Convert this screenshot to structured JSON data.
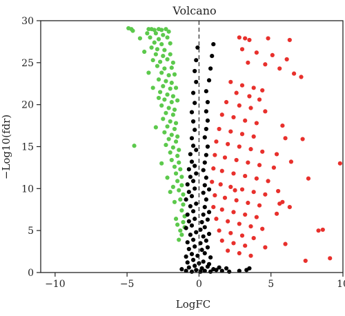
{
  "chart_data": {
    "type": "scatter",
    "title": "Volcano",
    "xlabel": "LogFC",
    "ylabel": "−Log10(fdr)",
    "xlim": [
      -11,
      10
    ],
    "ylim": [
      0,
      30
    ],
    "xticks": [
      -10,
      -5,
      0,
      5,
      10
    ],
    "yticks": [
      0,
      5,
      10,
      15,
      20,
      25,
      30
    ],
    "xtick_labels": [
      "−10",
      "−5",
      "0",
      "5",
      "10"
    ],
    "ytick_labels": [
      "0",
      "5",
      "10",
      "15",
      "20",
      "25",
      "30"
    ],
    "reference_line": {
      "x": 0,
      "style": "dashed"
    },
    "grid": false,
    "legend": "none",
    "colors": {
      "up": "#e8302c",
      "down": "#5cc94c",
      "not_significant": "#000000"
    },
    "series": [
      {
        "group": "down",
        "color": "#5cc94c",
        "points": [
          [
            -4.9,
            29.1
          ],
          [
            -4.7,
            29.0
          ],
          [
            -4.6,
            28.8
          ],
          [
            -3.5,
            29.0
          ],
          [
            -3.3,
            29.0
          ],
          [
            -3.1,
            28.9
          ],
          [
            -2.8,
            29.0
          ],
          [
            -2.6,
            28.9
          ],
          [
            -2.3,
            29.0
          ],
          [
            -2.1,
            28.7
          ],
          [
            -3.6,
            28.5
          ],
          [
            -3.0,
            28.5
          ],
          [
            -2.5,
            28.3
          ],
          [
            -3.4,
            28.0
          ],
          [
            -2.8,
            27.8
          ],
          [
            -2.2,
            28.0
          ],
          [
            -3.1,
            27.4
          ],
          [
            -2.6,
            27.2
          ],
          [
            -2.0,
            27.3
          ],
          [
            -3.3,
            26.8
          ],
          [
            -2.9,
            26.6
          ],
          [
            -2.4,
            26.5
          ],
          [
            -3.0,
            26.0
          ],
          [
            -2.5,
            25.8
          ],
          [
            -2.0,
            26.0
          ],
          [
            -3.2,
            25.3
          ],
          [
            -2.7,
            25.1
          ],
          [
            -2.2,
            25.4
          ],
          [
            -1.8,
            25.0
          ],
          [
            -2.9,
            24.6
          ],
          [
            -2.4,
            24.3
          ],
          [
            -1.9,
            24.4
          ],
          [
            -2.6,
            23.8
          ],
          [
            -2.1,
            23.5
          ],
          [
            -1.7,
            23.6
          ],
          [
            -2.8,
            23.0
          ],
          [
            -2.3,
            22.8
          ],
          [
            -1.9,
            22.6
          ],
          [
            -2.5,
            22.2
          ],
          [
            -2.0,
            21.9
          ],
          [
            -1.6,
            22.0
          ],
          [
            -2.7,
            21.5
          ],
          [
            -2.2,
            21.2
          ],
          [
            -1.8,
            21.0
          ],
          [
            -2.4,
            20.6
          ],
          [
            -1.9,
            20.3
          ],
          [
            -1.5,
            20.5
          ],
          [
            -2.6,
            19.9
          ],
          [
            -2.1,
            19.6
          ],
          [
            -1.7,
            19.4
          ],
          [
            -2.3,
            19.0
          ],
          [
            -1.8,
            18.8
          ],
          [
            -2.5,
            18.3
          ],
          [
            -2.0,
            18.0
          ],
          [
            -1.6,
            17.8
          ],
          [
            -2.2,
            17.4
          ],
          [
            -1.7,
            17.1
          ],
          [
            -2.4,
            16.7
          ],
          [
            -1.9,
            16.4
          ],
          [
            -1.5,
            16.2
          ],
          [
            -2.1,
            15.9
          ],
          [
            -1.6,
            15.6
          ],
          [
            -2.3,
            15.2
          ],
          [
            -1.8,
            14.9
          ],
          [
            -1.4,
            14.6
          ],
          [
            -2.0,
            14.3
          ],
          [
            -1.5,
            13.9
          ],
          [
            -1.9,
            13.4
          ],
          [
            -1.4,
            13.1
          ],
          [
            -1.7,
            12.6
          ],
          [
            -1.3,
            12.3
          ],
          [
            -1.6,
            11.8
          ],
          [
            -1.2,
            11.4
          ],
          [
            -1.5,
            10.9
          ],
          [
            -1.2,
            10.4
          ],
          [
            -1.4,
            9.8
          ],
          [
            -1.1,
            9.3
          ],
          [
            -1.3,
            8.7
          ],
          [
            -1.1,
            8.1
          ],
          [
            -1.2,
            7.4
          ],
          [
            -1.0,
            6.7
          ],
          [
            -1.1,
            6.0
          ],
          [
            -1.0,
            5.4
          ],
          [
            -1.3,
            5.0
          ],
          [
            -1.5,
            5.7
          ],
          [
            -1.6,
            6.4
          ],
          [
            -1.2,
            4.5
          ],
          [
            -1.4,
            3.9
          ],
          [
            -4.5,
            15.1
          ],
          [
            -1.8,
            10.2
          ],
          [
            -2.2,
            11.3
          ],
          [
            -2.6,
            13.0
          ],
          [
            -3.0,
            17.3
          ],
          [
            -3.5,
            23.8
          ],
          [
            -3.8,
            26.3
          ],
          [
            -4.1,
            27.9
          ],
          [
            -1.7,
            8.4
          ],
          [
            -2.0,
            9.6
          ],
          [
            -2.8,
            20.8
          ],
          [
            -3.2,
            22.0
          ]
        ]
      },
      {
        "group": "not_significant",
        "color": "#000000",
        "points": [
          [
            -0.9,
            0.2
          ],
          [
            -0.5,
            0.1
          ],
          [
            -0.2,
            0.3
          ],
          [
            0.1,
            0.1
          ],
          [
            0.4,
            0.2
          ],
          [
            0.8,
            0.1
          ],
          [
            1.2,
            0.3
          ],
          [
            1.6,
            0.2
          ],
          [
            2.1,
            0.1
          ],
          [
            -0.7,
            0.6
          ],
          [
            -0.3,
            0.8
          ],
          [
            0.2,
            0.5
          ],
          [
            0.6,
            0.7
          ],
          [
            1.0,
            0.4
          ],
          [
            1.4,
            0.6
          ],
          [
            -0.8,
            1.2
          ],
          [
            -0.4,
            1.5
          ],
          [
            0.0,
            1.1
          ],
          [
            0.3,
            1.3
          ],
          [
            0.7,
            1.0
          ],
          [
            -0.9,
            1.9
          ],
          [
            -0.5,
            2.2
          ],
          [
            -0.1,
            2.0
          ],
          [
            0.4,
            2.3
          ],
          [
            0.8,
            1.8
          ],
          [
            -0.7,
            2.8
          ],
          [
            -0.3,
            3.1
          ],
          [
            0.2,
            2.7
          ],
          [
            0.6,
            3.0
          ],
          [
            -0.8,
            3.6
          ],
          [
            -0.4,
            3.9
          ],
          [
            0.1,
            3.5
          ],
          [
            0.5,
            3.8
          ],
          [
            -0.6,
            4.5
          ],
          [
            -0.2,
            4.8
          ],
          [
            0.3,
            4.3
          ],
          [
            0.7,
            4.6
          ],
          [
            -0.9,
            5.3
          ],
          [
            -0.5,
            5.6
          ],
          [
            0.1,
            5.1
          ],
          [
            0.4,
            5.4
          ],
          [
            -0.7,
            6.1
          ],
          [
            -0.3,
            6.4
          ],
          [
            0.2,
            6.0
          ],
          [
            0.6,
            6.3
          ],
          [
            -0.8,
            6.9
          ],
          [
            -0.4,
            7.3
          ],
          [
            0.3,
            6.9
          ],
          [
            0.7,
            7.2
          ],
          [
            -0.6,
            7.9
          ],
          [
            -0.2,
            8.2
          ],
          [
            0.4,
            7.8
          ],
          [
            -0.9,
            8.7
          ],
          [
            -0.5,
            9.1
          ],
          [
            0.5,
            8.7
          ],
          [
            -0.7,
            9.6
          ],
          [
            -0.3,
            10.0
          ],
          [
            0.3,
            9.5
          ],
          [
            0.7,
            9.9
          ],
          [
            -0.8,
            10.5
          ],
          [
            -0.4,
            10.9
          ],
          [
            0.4,
            10.4
          ],
          [
            -0.6,
            11.4
          ],
          [
            -0.2,
            11.8
          ],
          [
            0.5,
            11.3
          ],
          [
            -0.7,
            12.3
          ],
          [
            -0.3,
            12.7
          ],
          [
            0.3,
            12.2
          ],
          [
            -0.5,
            13.2
          ],
          [
            0.4,
            13.1
          ],
          [
            -0.6,
            14.1
          ],
          [
            -0.2,
            14.6
          ],
          [
            0.5,
            14.0
          ],
          [
            -0.4,
            15.1
          ],
          [
            0.6,
            15.0
          ],
          [
            -0.5,
            16.0
          ],
          [
            0.4,
            16.1
          ],
          [
            -0.3,
            17.0
          ],
          [
            0.5,
            17.1
          ],
          [
            -0.4,
            18.0
          ],
          [
            0.6,
            18.1
          ],
          [
            -0.5,
            19.1
          ],
          [
            0.5,
            19.2
          ],
          [
            -0.3,
            20.2
          ],
          [
            0.6,
            20.3
          ],
          [
            -0.4,
            21.4
          ],
          [
            0.5,
            21.6
          ],
          [
            -0.2,
            22.7
          ],
          [
            0.7,
            22.9
          ],
          [
            -0.3,
            24.0
          ],
          [
            0.8,
            24.3
          ],
          [
            -0.2,
            25.3
          ],
          [
            0.9,
            25.8
          ],
          [
            1.0,
            27.2
          ],
          [
            -0.1,
            26.8
          ],
          [
            3.3,
            0.3
          ],
          [
            3.5,
            0.5
          ],
          [
            2.8,
            0.2
          ],
          [
            -1.2,
            0.4
          ],
          [
            1.9,
            0.5
          ]
        ]
      },
      {
        "group": "up",
        "color": "#e8302c",
        "points": [
          [
            2.8,
            28.0
          ],
          [
            3.2,
            27.9
          ],
          [
            3.5,
            27.7
          ],
          [
            4.8,
            27.9
          ],
          [
            6.3,
            27.7
          ],
          [
            3.0,
            26.6
          ],
          [
            4.0,
            26.2
          ],
          [
            5.1,
            25.9
          ],
          [
            6.1,
            25.4
          ],
          [
            3.4,
            25.0
          ],
          [
            4.6,
            24.8
          ],
          [
            5.6,
            24.3
          ],
          [
            6.6,
            23.7
          ],
          [
            7.1,
            23.3
          ],
          [
            2.2,
            22.7
          ],
          [
            3.0,
            22.3
          ],
          [
            3.8,
            22.0
          ],
          [
            4.4,
            21.7
          ],
          [
            2.6,
            21.4
          ],
          [
            3.5,
            21.0
          ],
          [
            4.2,
            20.6
          ],
          [
            1.9,
            20.3
          ],
          [
            2.8,
            19.9
          ],
          [
            3.6,
            19.6
          ],
          [
            4.6,
            19.2
          ],
          [
            1.6,
            18.8
          ],
          [
            2.4,
            18.5
          ],
          [
            3.2,
            18.1
          ],
          [
            4.0,
            17.8
          ],
          [
            5.8,
            17.5
          ],
          [
            1.4,
            17.1
          ],
          [
            2.2,
            16.8
          ],
          [
            3.0,
            16.5
          ],
          [
            3.8,
            16.2
          ],
          [
            6.0,
            16.0
          ],
          [
            7.2,
            15.9
          ],
          [
            1.2,
            15.6
          ],
          [
            2.0,
            15.3
          ],
          [
            2.8,
            15.0
          ],
          [
            3.6,
            14.7
          ],
          [
            4.4,
            14.4
          ],
          [
            5.4,
            14.1
          ],
          [
            1.1,
            14.0
          ],
          [
            1.8,
            13.7
          ],
          [
            2.6,
            13.4
          ],
          [
            3.4,
            13.1
          ],
          [
            4.2,
            12.8
          ],
          [
            5.2,
            12.5
          ],
          [
            6.4,
            13.2
          ],
          [
            9.8,
            13.0
          ],
          [
            1.0,
            12.4
          ],
          [
            1.6,
            12.1
          ],
          [
            2.4,
            11.8
          ],
          [
            3.2,
            11.5
          ],
          [
            4.0,
            11.2
          ],
          [
            4.8,
            10.9
          ],
          [
            0.9,
            10.8
          ],
          [
            1.5,
            10.5
          ],
          [
            2.2,
            10.2
          ],
          [
            3.0,
            9.9
          ],
          [
            3.8,
            9.6
          ],
          [
            4.6,
            9.3
          ],
          [
            5.5,
            9.7
          ],
          [
            7.6,
            11.2
          ],
          [
            1.1,
            9.2
          ],
          [
            1.8,
            8.9
          ],
          [
            2.6,
            8.6
          ],
          [
            3.4,
            8.3
          ],
          [
            4.2,
            8.0
          ],
          [
            5.8,
            8.4
          ],
          [
            1.0,
            7.8
          ],
          [
            1.6,
            7.5
          ],
          [
            2.4,
            7.2
          ],
          [
            3.2,
            6.9
          ],
          [
            4.0,
            6.6
          ],
          [
            5.4,
            7.0
          ],
          [
            1.2,
            6.4
          ],
          [
            2.0,
            6.1
          ],
          [
            2.8,
            5.8
          ],
          [
            3.6,
            5.5
          ],
          [
            4.4,
            5.2
          ],
          [
            1.4,
            5.0
          ],
          [
            2.2,
            4.7
          ],
          [
            3.0,
            4.4
          ],
          [
            3.8,
            4.1
          ],
          [
            1.6,
            3.8
          ],
          [
            2.4,
            3.5
          ],
          [
            3.2,
            3.2
          ],
          [
            4.6,
            3.0
          ],
          [
            2.0,
            2.6
          ],
          [
            2.8,
            2.3
          ],
          [
            3.6,
            2.0
          ],
          [
            6.0,
            3.4
          ],
          [
            8.3,
            5.0
          ],
          [
            8.6,
            5.1
          ],
          [
            9.1,
            1.7
          ],
          [
            7.4,
            1.4
          ],
          [
            5.6,
            8.2
          ],
          [
            6.3,
            7.8
          ],
          [
            2.5,
            9.8
          ]
        ]
      }
    ]
  }
}
